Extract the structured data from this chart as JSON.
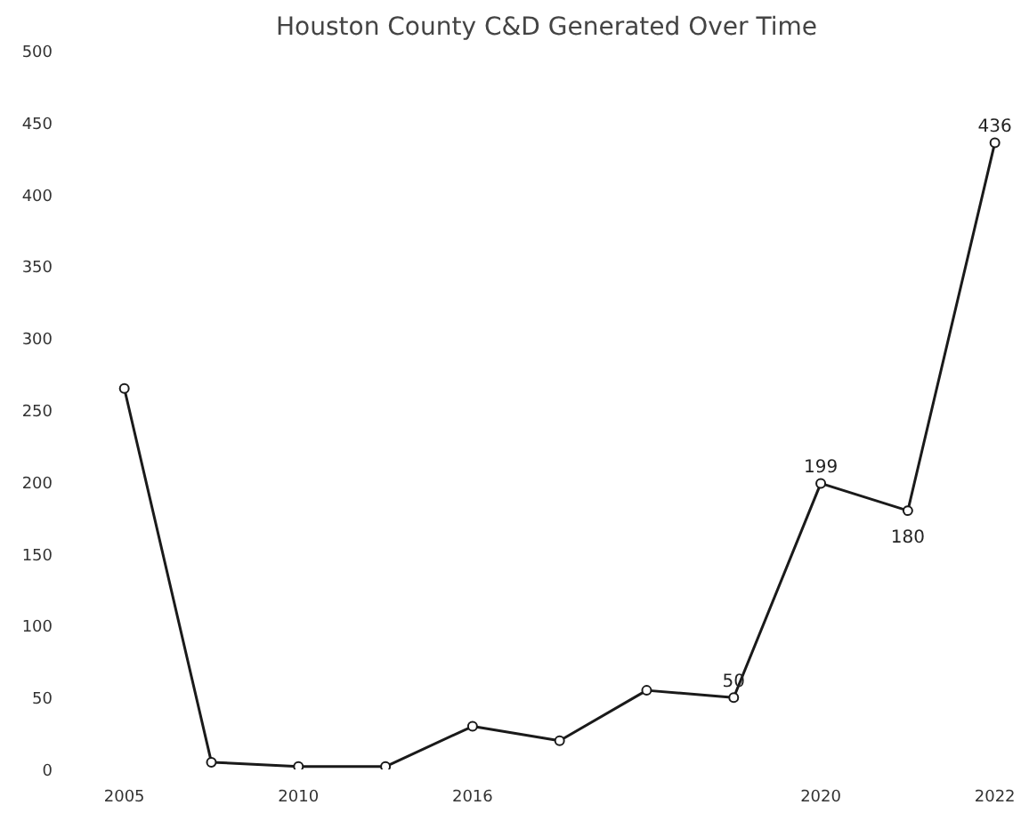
{
  "chart_data": {
    "type": "line",
    "title": "Houston County C&D Generated Over Time",
    "categories": [
      "2005",
      null,
      "2010",
      null,
      "2016",
      null,
      null,
      null,
      "2020",
      null,
      "2022"
    ],
    "series": [
      {
        "color": "#1a1a1a",
        "values": [
          265,
          5,
          2,
          2,
          30,
          20,
          55,
          50,
          199,
          180,
          436
        ],
        "value_labels": [
          null,
          null,
          null,
          null,
          null,
          null,
          null,
          "50",
          "199",
          "180",
          "436"
        ]
      }
    ],
    "ylim": [
      0,
      500
    ],
    "yticks": [
      0,
      50,
      100,
      150,
      200,
      250,
      300,
      350,
      400,
      450,
      500
    ],
    "grid": false,
    "marker": "circle",
    "line_style": "solid"
  }
}
